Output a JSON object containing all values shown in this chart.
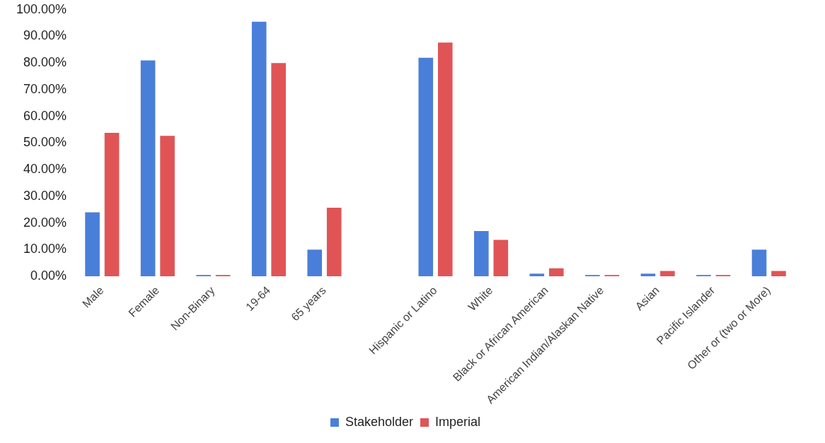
{
  "chart_data": {
    "type": "bar",
    "categories": [
      "Male",
      "Female",
      "Non-Binary",
      "19-64",
      "65 years",
      null,
      "Hispanic or Latino",
      "White",
      "Black or African American",
      "American Indian/Alaskan Native",
      "Asian",
      "Pacific Islander",
      "Other or (two or More)"
    ],
    "series": [
      {
        "name": "Stakeholder",
        "color": "#4a7fd9",
        "values": [
          24,
          81,
          0.5,
          95.5,
          10,
          null,
          82,
          17,
          1,
          0.5,
          1,
          0.5,
          10
        ]
      },
      {
        "name": "Imperial",
        "color": "#e05456",
        "values": [
          53.8,
          52.7,
          0.5,
          80,
          25.7,
          null,
          87.7,
          13.7,
          3,
          0.5,
          2,
          0.5,
          2
        ]
      }
    ],
    "ylim": [
      0,
      100
    ],
    "yticks": [
      {
        "value": 0,
        "label": "0.00%"
      },
      {
        "value": 10,
        "label": "10.00%"
      },
      {
        "value": 20,
        "label": "20.00%"
      },
      {
        "value": 30,
        "label": "30.00%"
      },
      {
        "value": 40,
        "label": "40.00%"
      },
      {
        "value": 50,
        "label": "50.00%"
      },
      {
        "value": 60,
        "label": "60.00%"
      },
      {
        "value": 70,
        "label": "70.00%"
      },
      {
        "value": 80,
        "label": "80.00%"
      },
      {
        "value": 90,
        "label": "90.00%"
      },
      {
        "value": 100,
        "label": "100.00%"
      }
    ],
    "legend": "bottom"
  }
}
